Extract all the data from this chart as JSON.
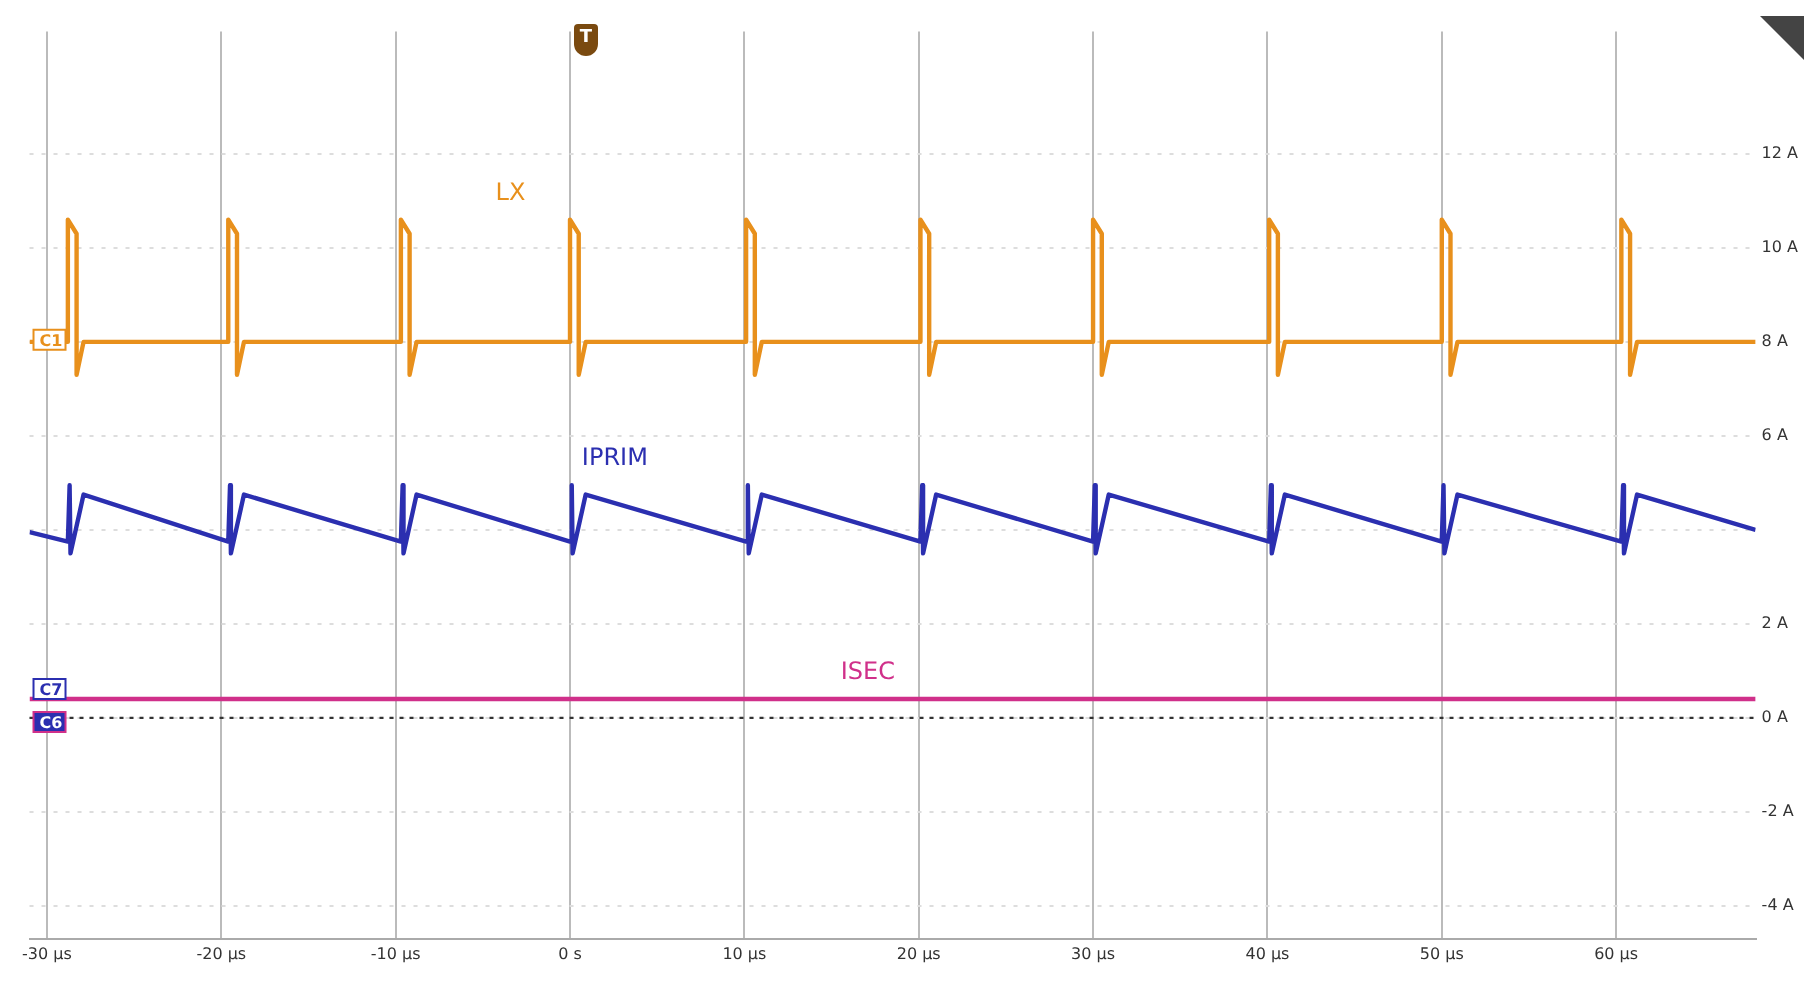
{
  "chart_data": {
    "type": "line",
    "xlim": [
      -31,
      68
    ],
    "xticks": [
      {
        "value": -30,
        "label": "-30 µs"
      },
      {
        "value": -20,
        "label": "-20 µs"
      },
      {
        "value": -10,
        "label": "-10 µs"
      },
      {
        "value": 0,
        "label": "0 s"
      },
      {
        "value": 10,
        "label": "10 µs"
      },
      {
        "value": 20,
        "label": "20 µs"
      },
      {
        "value": 30,
        "label": "30 µs"
      },
      {
        "value": 40,
        "label": "40 µs"
      },
      {
        "value": 50,
        "label": "50 µs"
      },
      {
        "value": 60,
        "label": "60 µs"
      }
    ],
    "ylim": [
      -4.7,
      14.6
    ],
    "yticks": [
      {
        "value": -4,
        "label": "-4 A"
      },
      {
        "value": -2,
        "label": "-2 A"
      },
      {
        "value": 0,
        "label": "0 A"
      },
      {
        "value": 2,
        "label": "2 A"
      },
      {
        "value": 4,
        "label": null
      },
      {
        "value": 6,
        "label": "6 A"
      },
      {
        "value": 8,
        "label": "8 A"
      },
      {
        "value": 10,
        "label": "10 A"
      },
      {
        "value": 12,
        "label": "12 A"
      }
    ],
    "grid": true,
    "legend": false,
    "marker": "none",
    "ref_lines": [
      {
        "axis": "y",
        "value": 0,
        "color": "#333333",
        "line_style": "dotted"
      }
    ],
    "annotations": [
      {
        "text": "C1",
        "y": 8
      },
      {
        "text": "C7",
        "y": 0.4
      },
      {
        "text": "C6",
        "y": 0
      },
      "T"
    ],
    "series": [
      {
        "name": "LX",
        "color": "#e8901c",
        "x": [
          -31,
          -28.8,
          -28.8,
          -28.3,
          -28.3,
          -27.9,
          -19.6,
          -19.6,
          -19.1,
          -19.1,
          -18.7,
          -9.7,
          -9.7,
          -9.2,
          -9.2,
          -8.8,
          0,
          0,
          0.5,
          0.5,
          0.9,
          10.1,
          10.1,
          10.6,
          10.6,
          11,
          20.1,
          20.1,
          20.6,
          20.6,
          21,
          30,
          30,
          30.5,
          30.5,
          30.9,
          40.1,
          40.1,
          40.6,
          40.6,
          41,
          50,
          50,
          50.5,
          50.5,
          50.9,
          60.3,
          60.3,
          60.8,
          60.8,
          61.2,
          68
        ],
        "values": [
          8,
          8,
          10.6,
          10.3,
          7.3,
          8,
          8,
          10.6,
          10.3,
          7.3,
          8,
          8,
          10.6,
          10.3,
          7.3,
          8,
          8,
          10.6,
          10.3,
          7.3,
          8,
          8,
          10.6,
          10.3,
          7.3,
          8,
          8,
          10.6,
          10.3,
          7.3,
          8,
          8,
          10.6,
          10.3,
          7.3,
          8,
          8,
          10.6,
          10.3,
          7.3,
          8,
          8,
          10.6,
          10.3,
          7.3,
          8,
          8,
          10.6,
          10.3,
          7.3,
          8,
          8
        ]
      },
      {
        "name": "IPRIM",
        "color": "#2b2fb0",
        "x": [
          -31,
          -28.8,
          -28.7,
          -28.65,
          -27.9,
          -19.6,
          -19.5,
          -19.45,
          -18.7,
          -9.7,
          -9.6,
          -9.55,
          -8.8,
          0,
          0.1,
          0.15,
          0.9,
          10.1,
          10.2,
          10.25,
          11,
          20.1,
          20.2,
          20.25,
          21,
          30,
          30.1,
          30.15,
          30.9,
          40.1,
          40.2,
          40.25,
          41,
          50,
          50.1,
          50.15,
          50.9,
          60.3,
          60.4,
          60.45,
          61.2,
          68
        ],
        "values": [
          3.95,
          3.75,
          4.95,
          3.5,
          4.75,
          3.75,
          4.95,
          3.5,
          4.75,
          3.75,
          4.95,
          3.5,
          4.75,
          3.75,
          4.95,
          3.5,
          4.75,
          3.75,
          4.95,
          3.5,
          4.75,
          3.75,
          4.95,
          3.5,
          4.75,
          3.75,
          4.95,
          3.5,
          4.75,
          3.75,
          4.95,
          3.5,
          4.75,
          3.75,
          4.95,
          3.5,
          4.75,
          3.75,
          4.95,
          3.5,
          4.75,
          4
        ]
      },
      {
        "name": "ISEC",
        "color": "#d0308a",
        "x": [
          -31,
          68
        ],
        "values": [
          0.4,
          0.4
        ]
      }
    ]
  }
}
